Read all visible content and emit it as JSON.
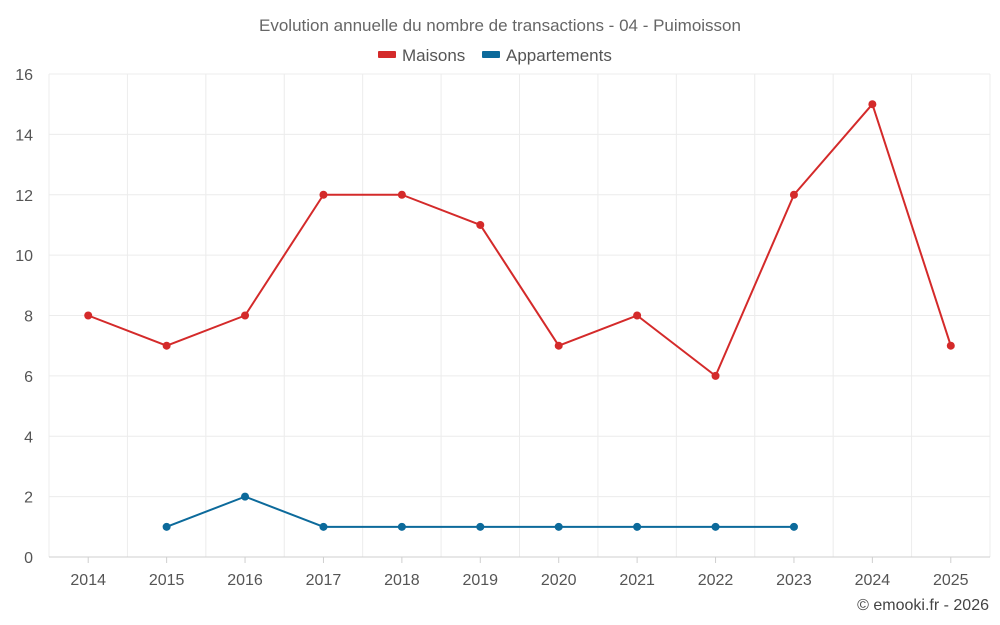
{
  "chart_data": {
    "type": "line",
    "title": "Evolution annuelle du nombre de transactions - 04 - Puimoisson",
    "categories": [
      "2014",
      "2015",
      "2016",
      "2017",
      "2018",
      "2019",
      "2020",
      "2021",
      "2022",
      "2023",
      "2024",
      "2025"
    ],
    "ylim": [
      0,
      16
    ],
    "yticks": [
      0,
      2,
      4,
      6,
      8,
      10,
      12,
      14,
      16
    ],
    "grid": true,
    "legend_position": "top-center",
    "series": [
      {
        "name": "Maisons",
        "color": "#d42a2a",
        "values": [
          8,
          7,
          8,
          12,
          12,
          11,
          7,
          8,
          6,
          12,
          15,
          7
        ]
      },
      {
        "name": "Appartements",
        "color": "#0c6a9b",
        "values": [
          null,
          1,
          2,
          1,
          1,
          1,
          1,
          1,
          1,
          1,
          null,
          null
        ]
      }
    ]
  },
  "credit": "© emooki.fr - 2026"
}
